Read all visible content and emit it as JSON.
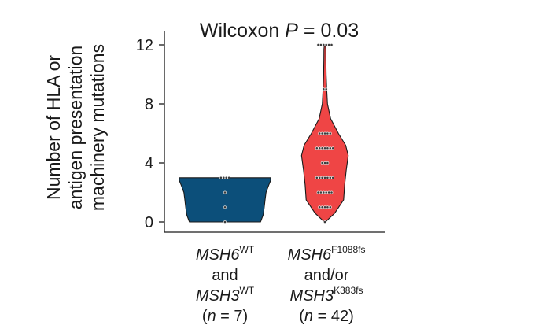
{
  "chart_data": {
    "type": "violin",
    "title": {
      "prefix": "Wilcoxon ",
      "p_symbol": "P",
      "suffix": " = 0.03"
    },
    "ylabel_lines": [
      "Number of HLA or",
      "antigen presentation",
      "machinery mutations"
    ],
    "ylim": [
      0,
      12.8
    ],
    "yticks": [
      0,
      4,
      8,
      12
    ],
    "ytick_labels": [
      "0",
      "4",
      "8",
      "12"
    ],
    "grid": false,
    "groups": [
      {
        "color": "#0c4f7a",
        "label": [
          [
            {
              "text": "MSH6",
              "italic": true
            },
            {
              "text": "WT",
              "sup": true
            }
          ],
          [
            {
              "text": "and"
            }
          ],
          [
            {
              "text": "MSH3",
              "italic": true
            },
            {
              "text": "WT",
              "sup": true
            }
          ],
          [
            {
              "text": "("
            },
            {
              "text": "n",
              "italic": true
            },
            {
              "text": " = 7)"
            }
          ]
        ],
        "values": [
          0,
          1,
          2,
          3,
          3,
          3,
          3
        ],
        "density": [
          [
            0,
            0.78
          ],
          [
            0.5,
            0.84
          ],
          [
            1,
            0.86
          ],
          [
            1.5,
            0.88
          ],
          [
            2,
            0.9
          ],
          [
            2.5,
            0.96
          ],
          [
            2.8,
            1.0
          ],
          [
            3,
            1.0
          ]
        ]
      },
      {
        "color": "#ef4545",
        "label": [
          [
            {
              "text": "MSH6",
              "italic": true
            },
            {
              "text": "F1088fs",
              "sup": true
            }
          ],
          [
            {
              "text": "and/or"
            }
          ],
          [
            {
              "text": "MSH3",
              "italic": true
            },
            {
              "text": "K383fs",
              "sup": true
            }
          ],
          [
            {
              "text": "("
            },
            {
              "text": "n",
              "italic": true
            },
            {
              "text": " = 42)"
            }
          ]
        ],
        "values": [
          0,
          1,
          1,
          1,
          1,
          1,
          2,
          2,
          2,
          2,
          2,
          2,
          3,
          3,
          3,
          3,
          3,
          3,
          3,
          4,
          4,
          4,
          5,
          5,
          5,
          5,
          5,
          5,
          5,
          6,
          6,
          6,
          6,
          6,
          9,
          9,
          12,
          12,
          12,
          12,
          12,
          12
        ],
        "density": [
          [
            0,
            0.02
          ],
          [
            0.6,
            0.38
          ],
          [
            1.5,
            0.72
          ],
          [
            2.5,
            0.76
          ],
          [
            3.5,
            0.82
          ],
          [
            4.5,
            0.9
          ],
          [
            5.2,
            0.8
          ],
          [
            6,
            0.52
          ],
          [
            7,
            0.22
          ],
          [
            8,
            0.1
          ],
          [
            9,
            0.07
          ],
          [
            10,
            0.05
          ],
          [
            11,
            0.04
          ],
          [
            11.7,
            0.035
          ],
          [
            12,
            0.02
          ]
        ]
      }
    ]
  }
}
